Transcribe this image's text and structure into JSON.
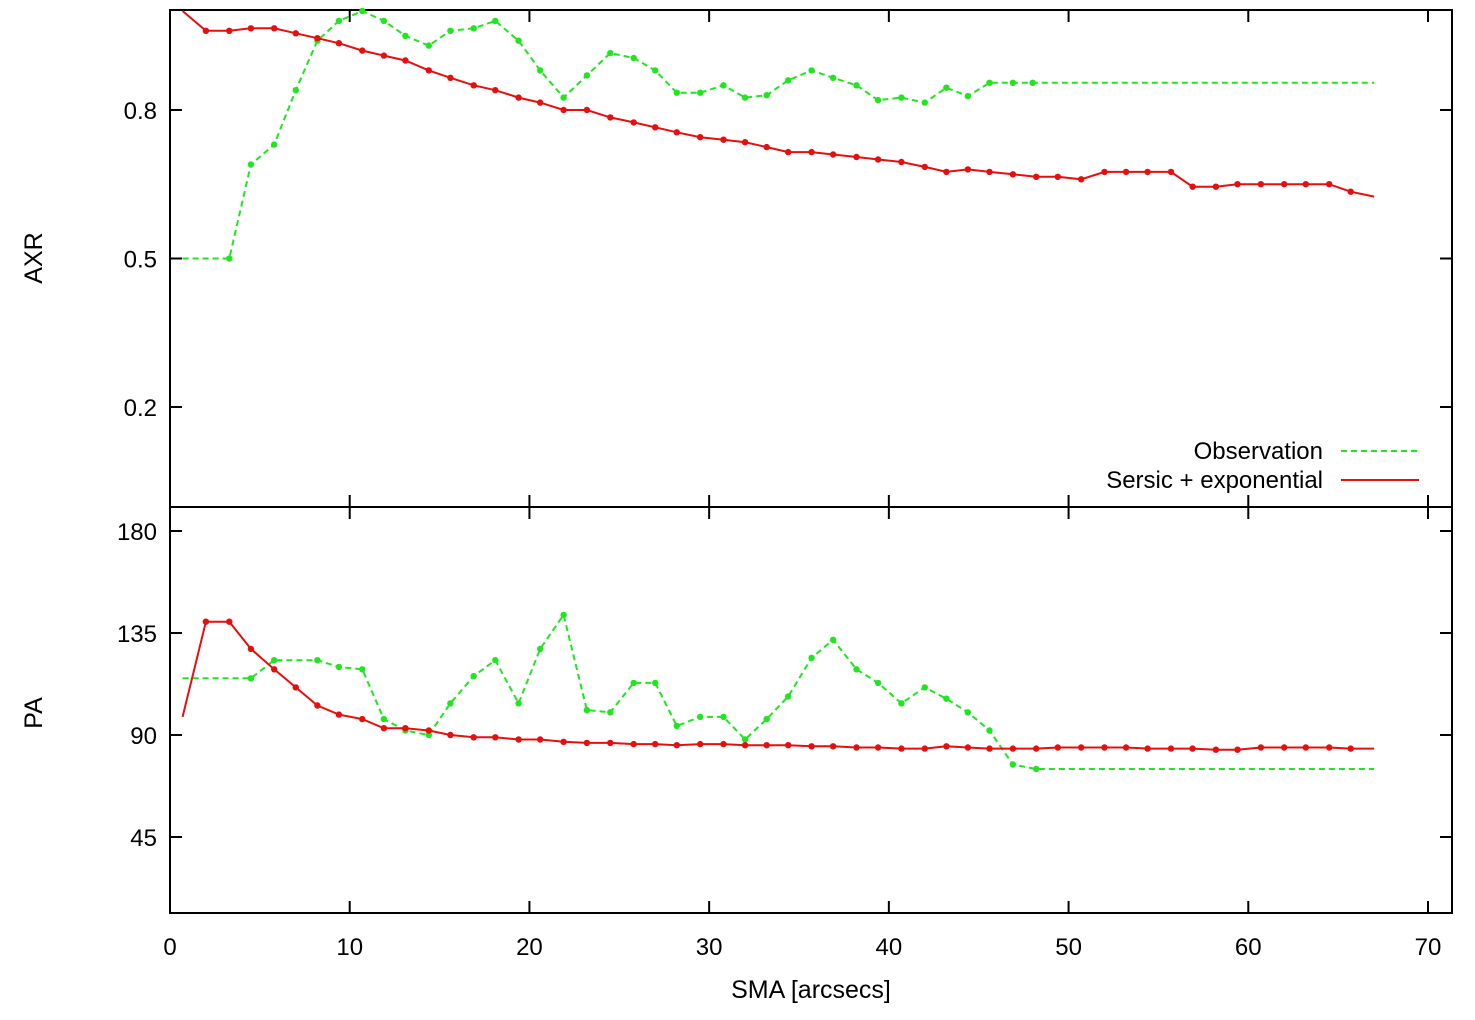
{
  "colors": {
    "observation": "#1fe61f",
    "model": "#e60f0f",
    "axes": "#000000",
    "background": "#ffffff"
  },
  "chart_data": [
    {
      "type": "line",
      "panel": "top",
      "ylabel": "AXR",
      "xlabel": "",
      "xlim": [
        0,
        71
      ],
      "ylim": [
        0,
        1.0
      ],
      "yticks": [
        "0.2",
        "0.5",
        "0.8"
      ],
      "ytick_values": [
        0.2,
        0.5,
        0.8
      ],
      "legend": {
        "placement": "bottom-right",
        "entries": [
          "Observation",
          "Sersic + exponential"
        ]
      },
      "series": [
        {
          "name": "Observation",
          "style": "dashed",
          "x": [
            0.7,
            3.3,
            4.5,
            5.8,
            7.0,
            8.2,
            9.4,
            10.7,
            11.9,
            13.1,
            14.4,
            15.6,
            16.9,
            18.1,
            19.4,
            20.6,
            21.9,
            23.2,
            24.5,
            25.8,
            27.0,
            28.2,
            29.5,
            30.8,
            32.0,
            33.2,
            34.4,
            35.7,
            36.9,
            38.2,
            39.4,
            40.7,
            42.0,
            43.2,
            44.4,
            45.6,
            46.9,
            48.0,
            67.0
          ],
          "y": [
            0.5,
            0.5,
            0.69,
            0.73,
            0.84,
            0.94,
            0.98,
            1.0,
            0.98,
            0.95,
            0.93,
            0.96,
            0.965,
            0.98,
            0.94,
            0.88,
            0.825,
            0.87,
            0.915,
            0.905,
            0.88,
            0.835,
            0.835,
            0.85,
            0.825,
            0.83,
            0.86,
            0.88,
            0.865,
            0.85,
            0.82,
            0.825,
            0.815,
            0.845,
            0.828,
            0.855,
            0.855,
            0.855,
            0.855
          ]
        },
        {
          "name": "Sersic + exponential",
          "style": "solid",
          "x": [
            0.7,
            2.0,
            3.3,
            4.5,
            5.8,
            7.0,
            8.2,
            9.4,
            10.7,
            11.9,
            13.1,
            14.4,
            15.6,
            16.9,
            18.1,
            19.4,
            20.6,
            21.9,
            23.2,
            24.5,
            25.8,
            27.0,
            28.2,
            29.5,
            30.8,
            32.0,
            33.2,
            34.4,
            35.7,
            36.9,
            38.2,
            39.4,
            40.7,
            42.0,
            43.2,
            44.4,
            45.6,
            46.9,
            48.2,
            49.4,
            50.7,
            52.0,
            53.2,
            54.4,
            55.7,
            56.9,
            58.2,
            59.4,
            60.7,
            62.0,
            63.2,
            64.5,
            65.7,
            67.0
          ],
          "y": [
            1.0,
            0.96,
            0.96,
            0.965,
            0.965,
            0.955,
            0.945,
            0.935,
            0.92,
            0.91,
            0.9,
            0.88,
            0.865,
            0.85,
            0.84,
            0.825,
            0.815,
            0.8,
            0.8,
            0.785,
            0.775,
            0.765,
            0.755,
            0.745,
            0.74,
            0.735,
            0.725,
            0.715,
            0.715,
            0.71,
            0.705,
            0.7,
            0.695,
            0.685,
            0.675,
            0.68,
            0.675,
            0.67,
            0.665,
            0.665,
            0.66,
            0.675,
            0.675,
            0.675,
            0.675,
            0.645,
            0.645,
            0.65,
            0.65,
            0.65,
            0.65,
            0.65,
            0.635,
            0.625
          ]
        }
      ]
    },
    {
      "type": "line",
      "panel": "bottom",
      "ylabel": "PA",
      "xlabel": "SMA [arcsecs]",
      "xlim": [
        0,
        71
      ],
      "ylim": [
        0,
        190
      ],
      "xticks": [
        "0",
        "10",
        "20",
        "30",
        "40",
        "50",
        "60",
        "70"
      ],
      "xtick_values": [
        0,
        10,
        20,
        30,
        40,
        50,
        60,
        70
      ],
      "yticks": [
        "45",
        "90",
        "135",
        "180"
      ],
      "ytick_values": [
        45,
        90,
        135,
        180
      ],
      "series": [
        {
          "name": "Observation",
          "style": "dashed",
          "x": [
            0.7,
            4.5,
            5.8,
            8.2,
            9.4,
            10.7,
            11.9,
            13.1,
            14.4,
            15.6,
            16.9,
            18.1,
            19.4,
            20.6,
            21.9,
            23.2,
            24.5,
            25.8,
            27.0,
            28.2,
            29.5,
            30.8,
            32.0,
            33.2,
            34.4,
            35.7,
            36.9,
            38.2,
            39.4,
            40.7,
            42.0,
            43.2,
            44.4,
            45.6,
            46.9,
            48.2,
            67.0
          ],
          "y": [
            115,
            115,
            123,
            123,
            120,
            119,
            97,
            92,
            90,
            104,
            116,
            123,
            104,
            128,
            143,
            101,
            100,
            113,
            113,
            94,
            98,
            98,
            88,
            97,
            107,
            124,
            132,
            119,
            113,
            104,
            111,
            106,
            100,
            92,
            77,
            75,
            75
          ]
        },
        {
          "name": "Sersic + exponential",
          "style": "solid",
          "x": [
            0.7,
            2.0,
            3.3,
            4.5,
            5.8,
            7.0,
            8.2,
            9.4,
            10.7,
            11.9,
            13.1,
            14.4,
            15.6,
            16.9,
            18.1,
            19.4,
            20.6,
            21.9,
            23.2,
            24.5,
            25.8,
            27.0,
            28.2,
            29.5,
            30.8,
            32.0,
            33.2,
            34.4,
            35.7,
            36.9,
            38.2,
            39.4,
            40.7,
            42.0,
            43.2,
            44.4,
            45.6,
            46.9,
            48.2,
            49.4,
            50.7,
            52.0,
            53.2,
            54.4,
            55.7,
            56.9,
            58.2,
            59.4,
            60.7,
            62.0,
            63.2,
            64.5,
            65.7,
            67.0
          ],
          "y": [
            98,
            140,
            140,
            128,
            119,
            111,
            103,
            99,
            97,
            93,
            93,
            92,
            90,
            89,
            89,
            88,
            88,
            87,
            86.5,
            86.5,
            86,
            86,
            85.5,
            86,
            86,
            85.5,
            85.5,
            85.5,
            85,
            85,
            84.5,
            84.5,
            84,
            84,
            85,
            84.5,
            84,
            84,
            84,
            84.5,
            84.5,
            84.5,
            84.5,
            84,
            84,
            84,
            83.5,
            83.5,
            84.5,
            84.5,
            84.5,
            84.5,
            84,
            84
          ]
        }
      ]
    }
  ]
}
